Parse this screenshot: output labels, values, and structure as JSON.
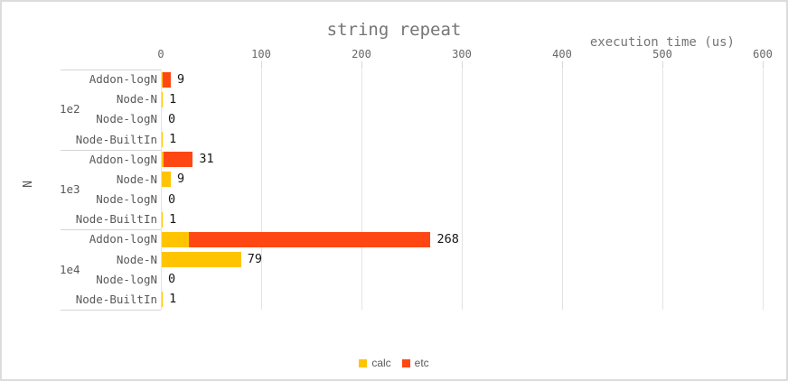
{
  "colors": {
    "calc": "#ffc400",
    "etc": "#ff4713",
    "gridline": "#e3e3e3",
    "divider": "#d6d6d6",
    "text_gray": "#595959",
    "title_gray": "#757575",
    "value_black": "#151515"
  },
  "chart_data": {
    "type": "bar",
    "orientation": "horizontal",
    "stacked": true,
    "title": "string repeat",
    "xlabel": "execution time (us)",
    "ylabel": "N",
    "xlim": [
      0,
      600
    ],
    "xticks": [
      0,
      100,
      200,
      300,
      400,
      500,
      600
    ],
    "grid": true,
    "legend_position": "bottom",
    "series": [
      {
        "name": "calc",
        "color": "#ffc400"
      },
      {
        "name": "etc",
        "color": "#ff4713"
      }
    ],
    "groups": [
      {
        "label": "1e2",
        "rows": [
          {
            "label": "Addon-logN",
            "calc": 1,
            "etc": 8,
            "total": 9
          },
          {
            "label": "Node-N",
            "calc": 1,
            "etc": 0,
            "total": 1
          },
          {
            "label": "Node-logN",
            "calc": 0,
            "etc": 0,
            "total": 0
          },
          {
            "label": "Node-BuiltIn",
            "calc": 1,
            "etc": 0,
            "total": 1
          }
        ]
      },
      {
        "label": "1e3",
        "rows": [
          {
            "label": "Addon-logN",
            "calc": 2,
            "etc": 29,
            "total": 31
          },
          {
            "label": "Node-N",
            "calc": 9,
            "etc": 0,
            "total": 9
          },
          {
            "label": "Node-logN",
            "calc": 0,
            "etc": 0,
            "total": 0
          },
          {
            "label": "Node-BuiltIn",
            "calc": 1,
            "etc": 0,
            "total": 1
          }
        ]
      },
      {
        "label": "1e4",
        "rows": [
          {
            "label": "Addon-logN",
            "calc": 27,
            "etc": 241,
            "total": 268
          },
          {
            "label": "Node-N",
            "calc": 79,
            "etc": 0,
            "total": 79
          },
          {
            "label": "Node-logN",
            "calc": 0,
            "etc": 0,
            "total": 0
          },
          {
            "label": "Node-BuiltIn",
            "calc": 1,
            "etc": 0,
            "total": 1
          }
        ]
      }
    ]
  }
}
